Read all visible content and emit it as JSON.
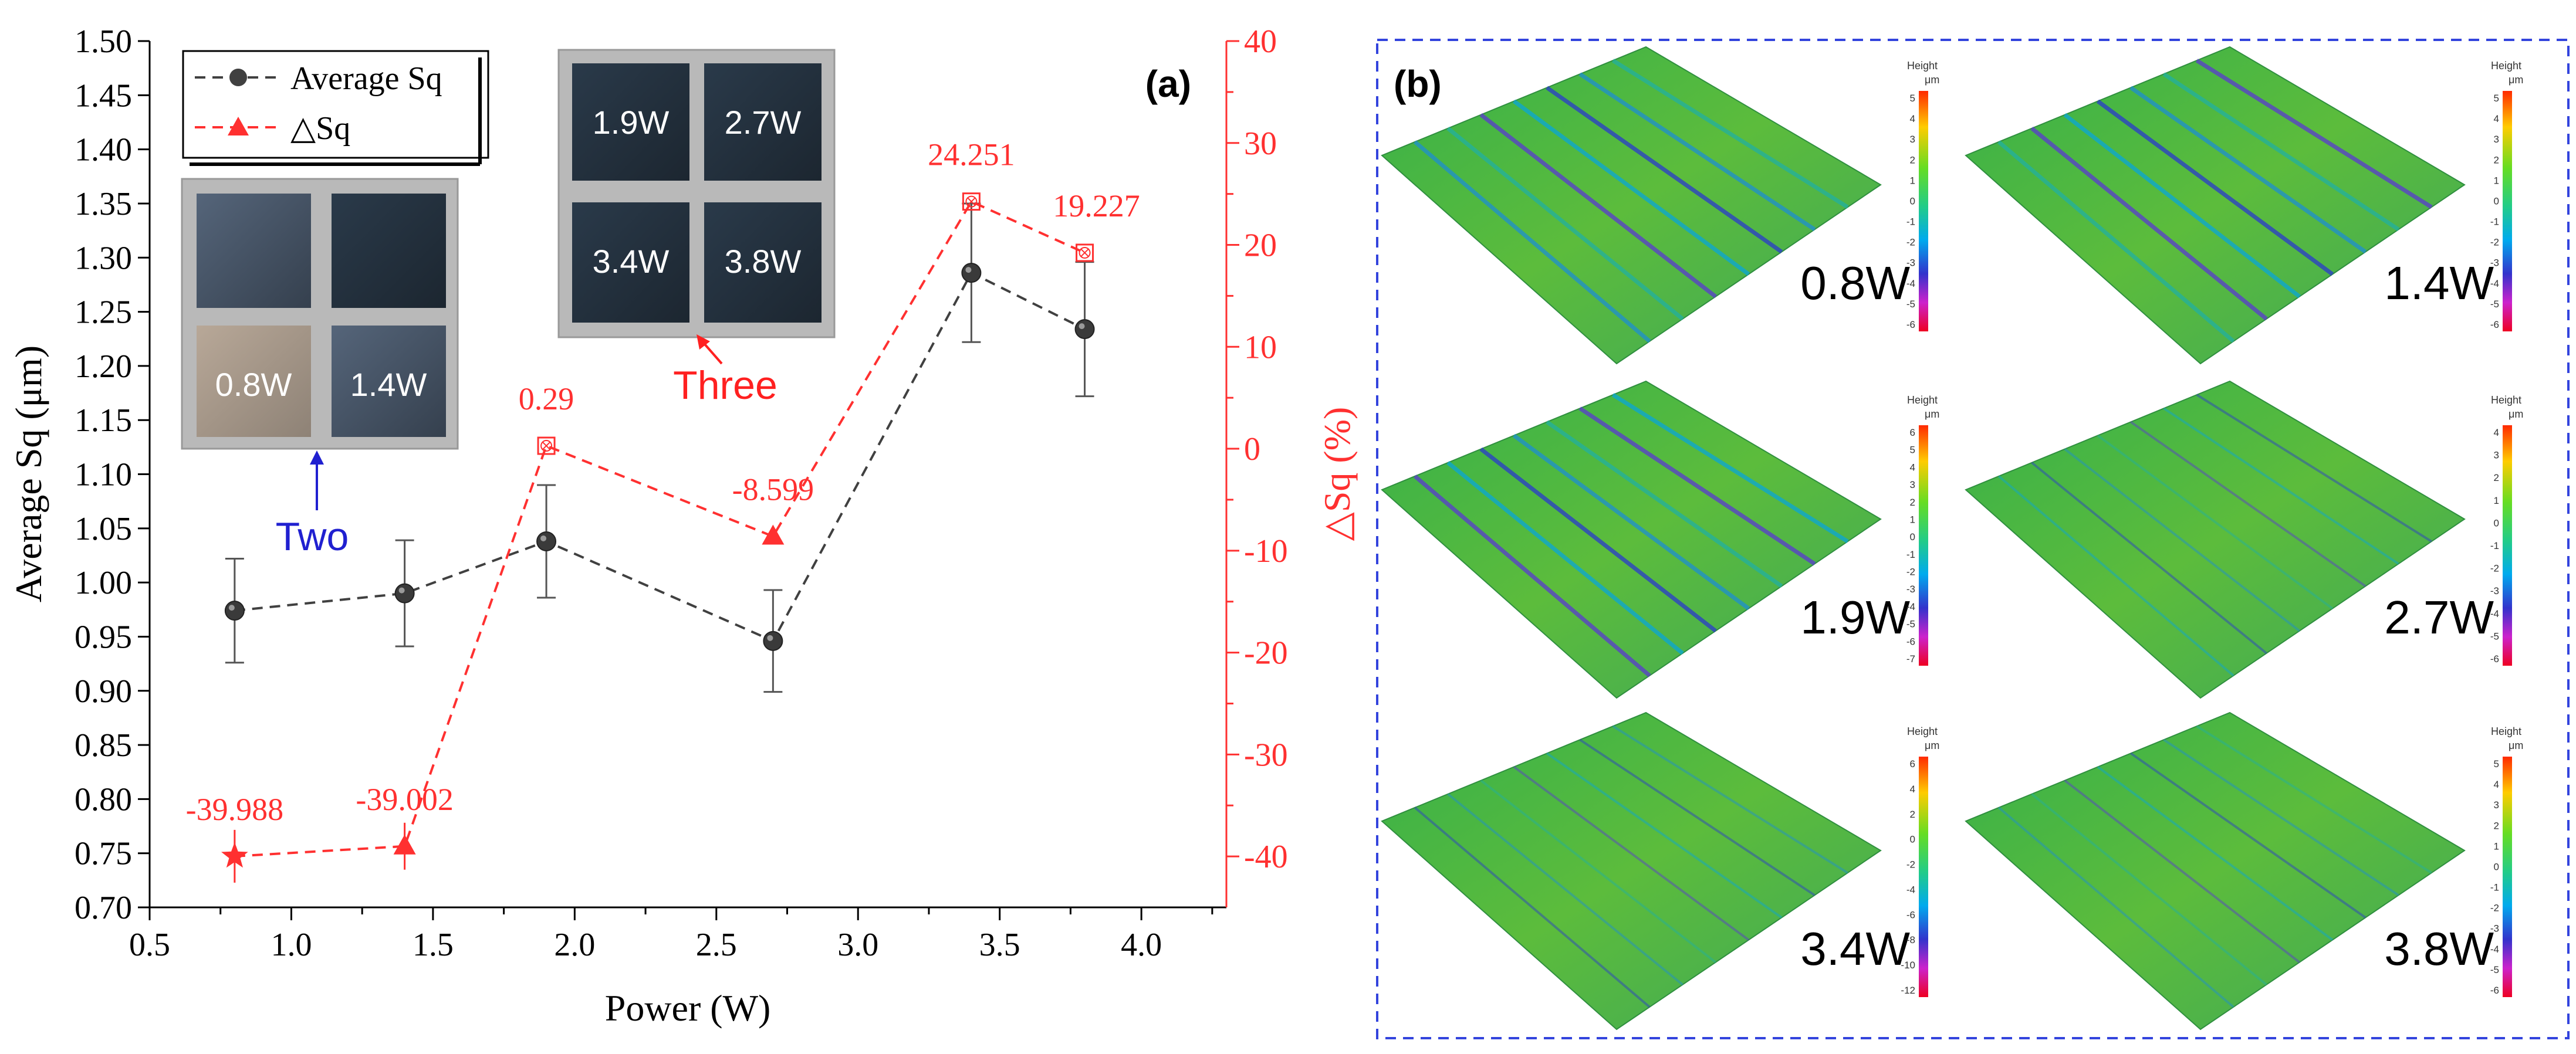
{
  "chart_data": [
    {
      "panel": "(a)",
      "type": "line",
      "xlabel": "Power (W)",
      "ylabel": "Average Sq (μm)",
      "y2label": "△Sq (%)",
      "xlim": [
        0.5,
        4.3
      ],
      "ylim": [
        0.7,
        1.5
      ],
      "y2lim": [
        -45,
        40
      ],
      "xticks": [
        0.5,
        1.0,
        1.5,
        2.0,
        2.5,
        3.0,
        3.5,
        4.0
      ],
      "xtick_labels": [
        "0.5",
        "1.0",
        "1.5",
        "2.0",
        "2.5",
        "3.0",
        "3.5",
        "4.0"
      ],
      "yticks": [
        0.7,
        0.75,
        0.8,
        0.85,
        0.9,
        0.95,
        1.0,
        1.05,
        1.1,
        1.15,
        1.2,
        1.25,
        1.3,
        1.35,
        1.4,
        1.45,
        1.5
      ],
      "ytick_labels": [
        "0.70",
        "0.75",
        "0.80",
        "0.85",
        "0.90",
        "0.95",
        "1.00",
        "1.05",
        "1.10",
        "1.15",
        "1.20",
        "1.25",
        "1.30",
        "1.35",
        "1.40",
        "1.45",
        "1.50"
      ],
      "y2ticks": [
        -40,
        -30,
        -20,
        -10,
        0,
        10,
        20,
        30,
        40
      ],
      "y2tick_labels": [
        "-40",
        "-30",
        "-20",
        "-10",
        "0",
        "10",
        "20",
        "30",
        "40"
      ],
      "grid": false,
      "legend_position": "top-left",
      "x": [
        0.8,
        1.4,
        1.9,
        2.7,
        3.4,
        3.8
      ],
      "series": [
        {
          "name": "Average Sq",
          "axis": "left",
          "color": "#404040",
          "values": [
            0.974,
            0.99,
            1.038,
            0.946,
            1.286,
            1.234
          ],
          "errors": [
            0.048,
            0.049,
            0.052,
            0.047,
            0.064,
            0.062
          ]
        },
        {
          "name": "△Sq",
          "axis": "right",
          "color": "#ff3030",
          "values": [
            -39.988,
            -39.002,
            0.29,
            -8.599,
            24.251,
            19.227
          ],
          "labels": [
            "-39.988",
            "-39.002",
            "0.29",
            "-8.599",
            "24.251",
            "19.227"
          ]
        }
      ],
      "insets": [
        {
          "callout": "Two",
          "callout_color": "#2020d0",
          "tiles": [
            "",
            "",
            "0.8W",
            "1.4W"
          ]
        },
        {
          "callout": "Three",
          "callout_color": "#ff2020",
          "tiles": [
            "1.9W",
            "2.7W",
            "3.4W",
            "3.8W"
          ]
        }
      ]
    },
    {
      "panel": "(b)",
      "type": "heatmap",
      "description_labels_only": true,
      "colorbar_title": "Height",
      "colorbar_unit": "μm",
      "border_color": "#3344dd",
      "maps": [
        {
          "label": "0.8W",
          "ticks": [
            "5",
            "4",
            "3",
            "2",
            "1",
            "0",
            "-1",
            "-2",
            "-3",
            "-4",
            "-5",
            "-6"
          ]
        },
        {
          "label": "1.4W",
          "ticks": [
            "5",
            "4",
            "3",
            "2",
            "1",
            "0",
            "-1",
            "-2",
            "-3",
            "-4",
            "-5",
            "-6"
          ]
        },
        {
          "label": "1.9W",
          "ticks": [
            "6",
            "5",
            "4",
            "3",
            "2",
            "1",
            "0",
            "-1",
            "-2",
            "-3",
            "-4",
            "-5",
            "-6",
            "-7"
          ]
        },
        {
          "label": "2.7W",
          "ticks": [
            "4",
            "3",
            "2",
            "1",
            "0",
            "-1",
            "-2",
            "-3",
            "-4",
            "-5",
            "-6"
          ]
        },
        {
          "label": "3.4W",
          "ticks": [
            "6",
            "4",
            "2",
            "0",
            "-2",
            "-4",
            "-6",
            "-8",
            "-10",
            "-12"
          ]
        },
        {
          "label": "3.8W",
          "ticks": [
            "5",
            "4",
            "3",
            "2",
            "1",
            "0",
            "-1",
            "-2",
            "-3",
            "-4",
            "-5",
            "-6"
          ]
        }
      ]
    }
  ]
}
